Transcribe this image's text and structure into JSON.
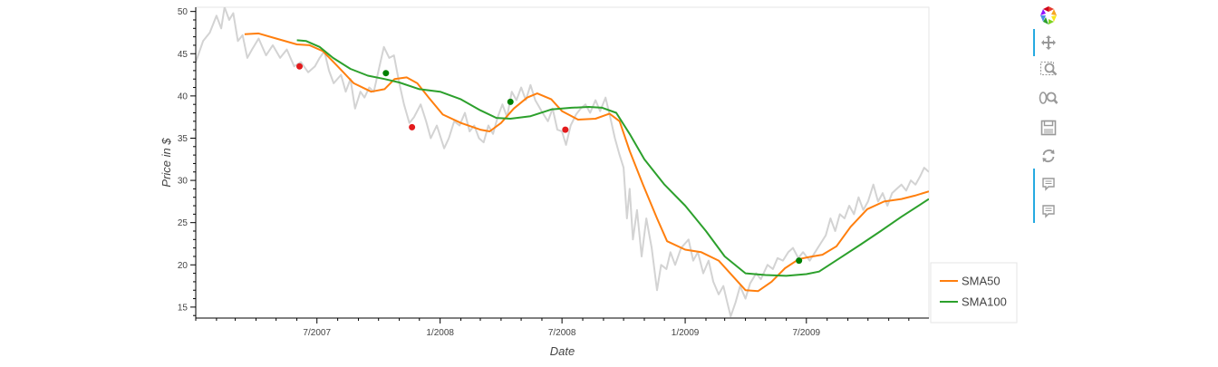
{
  "chart_data": {
    "type": "line",
    "xlabel": "Date",
    "ylabel": "Price in $",
    "x_range": [
      "2007-01-01",
      "2009-12-31"
    ],
    "ylim": [
      13.7,
      50.5
    ],
    "y_ticks": [
      15,
      20,
      25,
      30,
      35,
      40,
      45,
      50
    ],
    "y_tick_labels": [
      "15",
      "20",
      "25",
      "30",
      "35",
      "40",
      "45",
      "50"
    ],
    "x_ticks": [
      "2007-07-01",
      "2008-01-01",
      "2008-07-01",
      "2009-01-01",
      "2009-07-01"
    ],
    "x_tick_labels": [
      "7/2007",
      "1/2008",
      "7/2008",
      "1/2009",
      "7/2009"
    ],
    "grid": false,
    "legend_position": "bottom-right, outside",
    "series": [
      {
        "name": "",
        "role": "price",
        "color": "#d3d3d3",
        "points": [
          [
            "2007-01-01",
            44.0
          ],
          [
            "2007-01-12",
            46.5
          ],
          [
            "2007-01-22",
            47.5
          ],
          [
            "2007-02-01",
            49.5
          ],
          [
            "2007-02-08",
            48.0
          ],
          [
            "2007-02-13",
            50.5
          ],
          [
            "2007-02-20",
            49.0
          ],
          [
            "2007-02-26",
            49.8
          ],
          [
            "2007-03-05",
            46.5
          ],
          [
            "2007-03-12",
            47.2
          ],
          [
            "2007-03-19",
            44.5
          ],
          [
            "2007-03-26",
            45.5
          ],
          [
            "2007-04-05",
            46.8
          ],
          [
            "2007-04-16",
            44.8
          ],
          [
            "2007-04-26",
            46.0
          ],
          [
            "2007-05-07",
            44.5
          ],
          [
            "2007-05-17",
            45.5
          ],
          [
            "2007-05-28",
            43.5
          ],
          [
            "2007-06-07",
            44.0
          ],
          [
            "2007-06-18",
            42.8
          ],
          [
            "2007-06-28",
            43.5
          ],
          [
            "2007-07-05",
            44.5
          ],
          [
            "2007-07-12",
            45.3
          ],
          [
            "2007-07-19",
            43.0
          ],
          [
            "2007-07-26",
            41.5
          ],
          [
            "2007-08-06",
            42.5
          ],
          [
            "2007-08-13",
            40.5
          ],
          [
            "2007-08-20",
            42.0
          ],
          [
            "2007-08-27",
            38.5
          ],
          [
            "2007-09-04",
            40.5
          ],
          [
            "2007-09-10",
            39.8
          ],
          [
            "2007-09-17",
            41.0
          ],
          [
            "2007-09-24",
            40.5
          ],
          [
            "2007-10-01",
            43.0
          ],
          [
            "2007-10-09",
            45.8
          ],
          [
            "2007-10-17",
            44.5
          ],
          [
            "2007-10-24",
            44.8
          ],
          [
            "2007-11-01",
            41.5
          ],
          [
            "2007-11-08",
            39.0
          ],
          [
            "2007-11-16",
            36.8
          ],
          [
            "2007-11-23",
            37.5
          ],
          [
            "2007-12-03",
            39.0
          ],
          [
            "2007-12-11",
            37.0
          ],
          [
            "2007-12-18",
            35.0
          ],
          [
            "2007-12-27",
            36.5
          ],
          [
            "2008-01-07",
            33.8
          ],
          [
            "2008-01-14",
            35.0
          ],
          [
            "2008-01-22",
            37.0
          ],
          [
            "2008-01-30",
            36.5
          ],
          [
            "2008-02-07",
            38.0
          ],
          [
            "2008-02-14",
            35.8
          ],
          [
            "2008-02-21",
            36.5
          ],
          [
            "2008-02-28",
            35.0
          ],
          [
            "2008-03-06",
            34.5
          ],
          [
            "2008-03-13",
            36.5
          ],
          [
            "2008-03-20",
            35.5
          ],
          [
            "2008-03-27",
            37.5
          ],
          [
            "2008-04-03",
            39.0
          ],
          [
            "2008-04-10",
            37.5
          ],
          [
            "2008-04-17",
            40.5
          ],
          [
            "2008-04-24",
            39.5
          ],
          [
            "2008-05-01",
            41.0
          ],
          [
            "2008-05-08",
            39.5
          ],
          [
            "2008-05-15",
            41.3
          ],
          [
            "2008-05-22",
            39.5
          ],
          [
            "2008-06-02",
            38.0
          ],
          [
            "2008-06-10",
            37.0
          ],
          [
            "2008-06-17",
            38.5
          ],
          [
            "2008-06-24",
            36.0
          ],
          [
            "2008-07-01",
            35.8
          ],
          [
            "2008-07-07",
            34.2
          ],
          [
            "2008-07-14",
            36.5
          ],
          [
            "2008-07-22",
            37.8
          ],
          [
            "2008-07-29",
            38.5
          ],
          [
            "2008-08-05",
            39.0
          ],
          [
            "2008-08-12",
            38.0
          ],
          [
            "2008-08-20",
            39.5
          ],
          [
            "2008-08-27",
            38.2
          ],
          [
            "2008-09-04",
            39.8
          ],
          [
            "2008-09-11",
            37.5
          ],
          [
            "2008-09-18",
            35.0
          ],
          [
            "2008-09-25",
            33.0
          ],
          [
            "2008-10-01",
            31.5
          ],
          [
            "2008-10-06",
            25.5
          ],
          [
            "2008-10-10",
            29.0
          ],
          [
            "2008-10-15",
            23.0
          ],
          [
            "2008-10-21",
            26.5
          ],
          [
            "2008-10-28",
            21.0
          ],
          [
            "2008-11-04",
            25.5
          ],
          [
            "2008-11-12",
            22.0
          ],
          [
            "2008-11-20",
            17.0
          ],
          [
            "2008-11-26",
            20.0
          ],
          [
            "2008-12-04",
            19.5
          ],
          [
            "2008-12-10",
            21.5
          ],
          [
            "2008-12-17",
            20.0
          ],
          [
            "2008-12-26",
            22.0
          ],
          [
            "2009-01-06",
            23.0
          ],
          [
            "2009-01-13",
            20.5
          ],
          [
            "2009-01-20",
            21.5
          ],
          [
            "2009-01-28",
            19.0
          ],
          [
            "2009-02-05",
            20.5
          ],
          [
            "2009-02-12",
            18.0
          ],
          [
            "2009-02-20",
            16.5
          ],
          [
            "2009-02-27",
            17.5
          ],
          [
            "2009-03-05",
            15.5
          ],
          [
            "2009-03-10",
            13.9
          ],
          [
            "2009-03-17",
            15.5
          ],
          [
            "2009-03-24",
            17.5
          ],
          [
            "2009-04-01",
            16.0
          ],
          [
            "2009-04-08",
            17.8
          ],
          [
            "2009-04-17",
            19.0
          ],
          [
            "2009-04-24",
            18.3
          ],
          [
            "2009-05-04",
            20.0
          ],
          [
            "2009-05-12",
            19.5
          ],
          [
            "2009-05-19",
            20.8
          ],
          [
            "2009-05-27",
            20.5
          ],
          [
            "2009-06-04",
            21.5
          ],
          [
            "2009-06-11",
            22.0
          ],
          [
            "2009-06-19",
            20.8
          ],
          [
            "2009-06-26",
            21.5
          ],
          [
            "2009-07-06",
            20.5
          ],
          [
            "2009-07-14",
            21.5
          ],
          [
            "2009-07-22",
            22.5
          ],
          [
            "2009-07-30",
            23.5
          ],
          [
            "2009-08-06",
            25.5
          ],
          [
            "2009-08-13",
            24.0
          ],
          [
            "2009-08-20",
            26.0
          ],
          [
            "2009-08-27",
            25.5
          ],
          [
            "2009-09-03",
            27.0
          ],
          [
            "2009-09-10",
            26.0
          ],
          [
            "2009-09-17",
            28.0
          ],
          [
            "2009-09-24",
            26.5
          ],
          [
            "2009-10-01",
            27.5
          ],
          [
            "2009-10-09",
            29.5
          ],
          [
            "2009-10-16",
            27.5
          ],
          [
            "2009-10-23",
            28.5
          ],
          [
            "2009-10-30",
            27.0
          ],
          [
            "2009-11-06",
            28.5
          ],
          [
            "2009-11-13",
            29.0
          ],
          [
            "2009-11-20",
            29.5
          ],
          [
            "2009-11-27",
            28.8
          ],
          [
            "2009-12-04",
            30.0
          ],
          [
            "2009-12-11",
            29.5
          ],
          [
            "2009-12-18",
            30.5
          ],
          [
            "2009-12-24",
            31.5
          ],
          [
            "2009-12-31",
            31.0
          ]
        ]
      },
      {
        "name": "SMA50",
        "color": "#ff7f0e",
        "points": [
          [
            "2007-03-15",
            47.3
          ],
          [
            "2007-04-05",
            47.4
          ],
          [
            "2007-05-01",
            46.8
          ],
          [
            "2007-06-01",
            46.1
          ],
          [
            "2007-06-20",
            46.0
          ],
          [
            "2007-07-10",
            45.3
          ],
          [
            "2007-08-01",
            43.5
          ],
          [
            "2007-08-25",
            41.5
          ],
          [
            "2007-09-20",
            40.5
          ],
          [
            "2007-10-10",
            40.8
          ],
          [
            "2007-10-25",
            42.0
          ],
          [
            "2007-11-12",
            42.2
          ],
          [
            "2007-11-28",
            41.5
          ],
          [
            "2007-12-15",
            39.8
          ],
          [
            "2008-01-05",
            37.8
          ],
          [
            "2008-02-01",
            36.8
          ],
          [
            "2008-03-01",
            36.0
          ],
          [
            "2008-03-15",
            35.8
          ],
          [
            "2008-04-01",
            36.8
          ],
          [
            "2008-04-20",
            38.5
          ],
          [
            "2008-05-10",
            39.8
          ],
          [
            "2008-05-25",
            40.3
          ],
          [
            "2008-06-15",
            39.6
          ],
          [
            "2008-07-01",
            38.2
          ],
          [
            "2008-07-25",
            37.2
          ],
          [
            "2008-08-20",
            37.3
          ],
          [
            "2008-09-10",
            37.9
          ],
          [
            "2008-09-25",
            37.0
          ],
          [
            "2008-10-10",
            33.5
          ],
          [
            "2008-10-30",
            29.5
          ],
          [
            "2008-11-20",
            25.5
          ],
          [
            "2008-12-05",
            22.8
          ],
          [
            "2009-01-01",
            21.8
          ],
          [
            "2009-01-25",
            21.5
          ],
          [
            "2009-02-20",
            20.5
          ],
          [
            "2009-03-15",
            18.5
          ],
          [
            "2009-04-01",
            17.0
          ],
          [
            "2009-04-20",
            16.9
          ],
          [
            "2009-05-10",
            18.0
          ],
          [
            "2009-05-30",
            19.6
          ],
          [
            "2009-06-20",
            20.7
          ],
          [
            "2009-07-10",
            21.0
          ],
          [
            "2009-07-25",
            21.2
          ],
          [
            "2009-08-15",
            22.2
          ],
          [
            "2009-09-05",
            24.5
          ],
          [
            "2009-09-30",
            26.6
          ],
          [
            "2009-10-25",
            27.5
          ],
          [
            "2009-11-20",
            27.8
          ],
          [
            "2009-12-10",
            28.2
          ],
          [
            "2009-12-31",
            28.7
          ]
        ]
      },
      {
        "name": "SMA100",
        "color": "#2ca02c",
        "points": [
          [
            "2007-06-01",
            46.6
          ],
          [
            "2007-06-15",
            46.5
          ],
          [
            "2007-07-05",
            45.8
          ],
          [
            "2007-07-25",
            44.5
          ],
          [
            "2007-08-20",
            43.2
          ],
          [
            "2007-09-15",
            42.4
          ],
          [
            "2007-10-10",
            42.0
          ],
          [
            "2007-11-01",
            41.6
          ],
          [
            "2007-12-01",
            40.8
          ],
          [
            "2008-01-01",
            40.5
          ],
          [
            "2008-02-01",
            39.6
          ],
          [
            "2008-03-01",
            38.3
          ],
          [
            "2008-03-25",
            37.4
          ],
          [
            "2008-04-15",
            37.3
          ],
          [
            "2008-05-15",
            37.6
          ],
          [
            "2008-06-15",
            38.4
          ],
          [
            "2008-07-15",
            38.6
          ],
          [
            "2008-08-10",
            38.7
          ],
          [
            "2008-08-30",
            38.6
          ],
          [
            "2008-09-20",
            38.0
          ],
          [
            "2008-10-10",
            35.5
          ],
          [
            "2008-11-01",
            32.5
          ],
          [
            "2008-12-01",
            29.5
          ],
          [
            "2009-01-01",
            27.0
          ],
          [
            "2009-02-01",
            24.0
          ],
          [
            "2009-03-01",
            21.0
          ],
          [
            "2009-04-01",
            19.0
          ],
          [
            "2009-05-01",
            18.8
          ],
          [
            "2009-06-01",
            18.7
          ],
          [
            "2009-07-01",
            18.9
          ],
          [
            "2009-07-20",
            19.2
          ],
          [
            "2009-08-20",
            20.8
          ],
          [
            "2009-09-20",
            22.4
          ],
          [
            "2009-10-20",
            24.0
          ],
          [
            "2009-11-20",
            25.7
          ],
          [
            "2009-12-31",
            27.8
          ]
        ]
      }
    ],
    "signals": [
      {
        "signal": "sell",
        "color": "#e31a1c",
        "points": [
          [
            "2007-06-05",
            43.5
          ],
          [
            "2007-11-20",
            36.3
          ],
          [
            "2008-07-06",
            36.0
          ]
        ]
      },
      {
        "signal": "buy",
        "color": "#008000",
        "points": [
          [
            "2007-10-12",
            42.7
          ],
          [
            "2008-04-15",
            39.3
          ],
          [
            "2009-06-20",
            20.5
          ]
        ]
      }
    ]
  },
  "toolbar": {
    "tools": [
      "bokeh-logo-icon",
      "pan-icon",
      "box-zoom-icon",
      "wheel-zoom-icon",
      "save-icon",
      "reset-icon",
      "hover-icon",
      "hover-icon"
    ]
  }
}
